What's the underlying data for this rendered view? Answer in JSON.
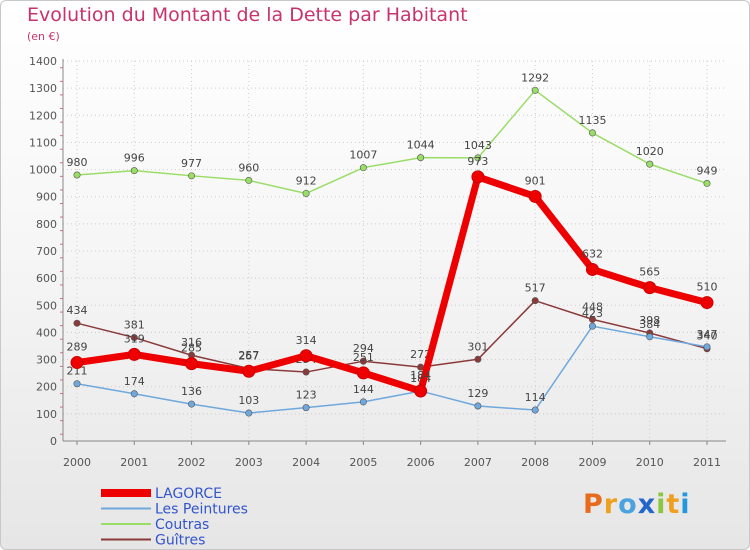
{
  "title": "Evolution du Montant de la Dette par Habitant",
  "subtitle": "(en €)",
  "logo_text": "Proxiti",
  "chart_data": {
    "type": "line",
    "title": "Evolution du Montant de la Dette par Habitant",
    "ylabel": "(en €)",
    "xlabel": "",
    "ylim": [
      0,
      1400
    ],
    "yticks": [
      0,
      100,
      200,
      300,
      400,
      500,
      600,
      700,
      800,
      900,
      1000,
      1100,
      1200,
      1300,
      1400
    ],
    "grid": true,
    "legend": "bottom-left",
    "x": [
      "2000",
      "2001",
      "2002",
      "2003",
      "2004",
      "2005",
      "2006",
      "2007",
      "2008",
      "2009",
      "2010",
      "2011"
    ],
    "series": [
      {
        "name": "LAGORCE",
        "color": "#ee0000",
        "values": [
          289,
          319,
          285,
          257,
          314,
          251,
          184,
          973,
          901,
          632,
          565,
          510
        ]
      },
      {
        "name": "Les Peintures",
        "color": "#6fa8dc",
        "values": [
          211,
          174,
          136,
          103,
          123,
          144,
          184,
          129,
          114,
          423,
          384,
          347
        ]
      },
      {
        "name": "Coutras",
        "color": "#99dd66",
        "values": [
          980,
          996,
          977,
          960,
          912,
          1007,
          1044,
          1043,
          1292,
          1135,
          1020,
          949
        ]
      },
      {
        "name": "Guîtres",
        "color": "#8b3a3a",
        "values": [
          434,
          381,
          316,
          267,
          254,
          294,
          272,
          301,
          517,
          448,
          398,
          340
        ]
      }
    ]
  }
}
